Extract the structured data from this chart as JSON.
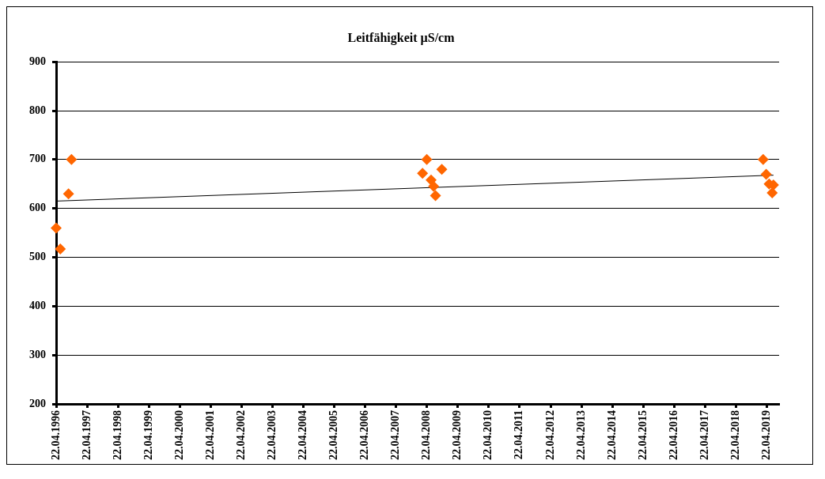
{
  "chart_data": {
    "type": "scatter",
    "title": "Leitfähigkeit µS/cm",
    "xlim": [
      "1996-04-22",
      "2019-09-15"
    ],
    "xticks": [
      {
        "value": "1996-04-22",
        "label": "22.04.1996"
      },
      {
        "value": "1997-04-22",
        "label": "22.04.1997"
      },
      {
        "value": "1998-04-22",
        "label": "22.04.1998"
      },
      {
        "value": "1999-04-22",
        "label": "22.04.1999"
      },
      {
        "value": "2000-04-22",
        "label": "22.04.2000"
      },
      {
        "value": "2001-04-22",
        "label": "22.04.2001"
      },
      {
        "value": "2002-04-22",
        "label": "22.04.2002"
      },
      {
        "value": "2003-04-22",
        "label": "22.04.2003"
      },
      {
        "value": "2004-04-22",
        "label": "22.04.2004"
      },
      {
        "value": "2005-04-22",
        "label": "22.04.2005"
      },
      {
        "value": "2006-04-22",
        "label": "22.04.2006"
      },
      {
        "value": "2007-04-22",
        "label": "22.04.2007"
      },
      {
        "value": "2008-04-22",
        "label": "22.04.2008"
      },
      {
        "value": "2009-04-22",
        "label": "22.04.2009"
      },
      {
        "value": "2010-04-22",
        "label": "22.04.2010"
      },
      {
        "value": "2011-04-22",
        "label": "22.04.2011"
      },
      {
        "value": "2012-04-22",
        "label": "22.04.2012"
      },
      {
        "value": "2013-04-22",
        "label": "22.04.2013"
      },
      {
        "value": "2014-04-22",
        "label": "22.04.2014"
      },
      {
        "value": "2015-04-22",
        "label": "22.04.2015"
      },
      {
        "value": "2016-04-22",
        "label": "22.04.2016"
      },
      {
        "value": "2017-04-22",
        "label": "22.04.2017"
      },
      {
        "value": "2018-04-22",
        "label": "22.04.2018"
      },
      {
        "value": "2019-04-22",
        "label": "22.04.2019"
      }
    ],
    "ylim": [
      200,
      900
    ],
    "yticks": [
      200,
      300,
      400,
      500,
      600,
      700,
      800,
      900
    ],
    "grid": "y",
    "legend": false,
    "marker": "diamond",
    "series": [
      {
        "color": "#ff6600",
        "x": [
          "1996-04-22",
          "1996-06-10",
          "1996-09-15",
          "1996-10-20",
          "2008-03-01",
          "2008-04-20",
          "2008-06-10",
          "2008-07-10",
          "2008-08-01",
          "2008-10-15",
          "2019-03-10",
          "2019-04-15",
          "2019-05-20",
          "2019-07-10",
          "2019-06-25"
        ],
        "values": [
          560,
          517,
          630,
          700,
          672,
          700,
          658,
          645,
          626,
          680,
          700,
          670,
          650,
          648,
          632
        ]
      },
      {
        "type": "line",
        "color": "#000000",
        "marker": "none",
        "x": [
          "1996-04-22",
          "2019-07-10"
        ],
        "values": [
          615,
          668
        ]
      }
    ]
  }
}
